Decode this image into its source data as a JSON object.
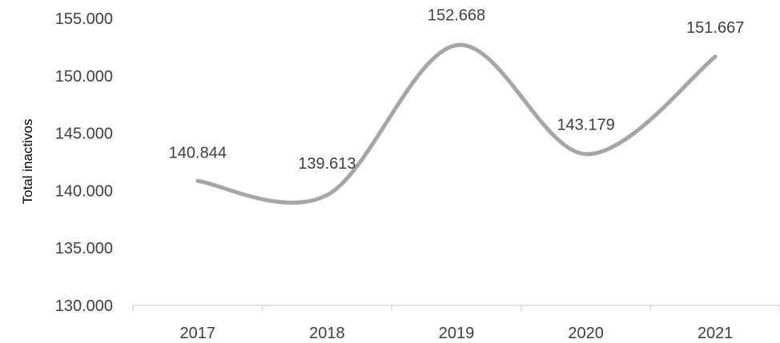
{
  "chart_data": {
    "type": "line",
    "categories": [
      "2017",
      "2018",
      "2019",
      "2020",
      "2021"
    ],
    "series": [
      {
        "values": [
          140844,
          139613,
          152668,
          143179,
          151667
        ],
        "labels": [
          "140.844",
          "139.613",
          "152.668",
          "143.179",
          "151.667"
        ]
      }
    ],
    "ylabel": "Total inactivos",
    "ylim": [
      130000,
      155000
    ],
    "yticks": [
      130000,
      135000,
      140000,
      145000,
      150000,
      155000
    ],
    "ytick_labels": [
      "130.000",
      "135.000",
      "140.000",
      "145.000",
      "150.000",
      "155.000"
    ],
    "smooth": true,
    "grid": false,
    "legend": "none",
    "line_color": "#a6a6a6",
    "axis_color": "#d9d9d9"
  }
}
